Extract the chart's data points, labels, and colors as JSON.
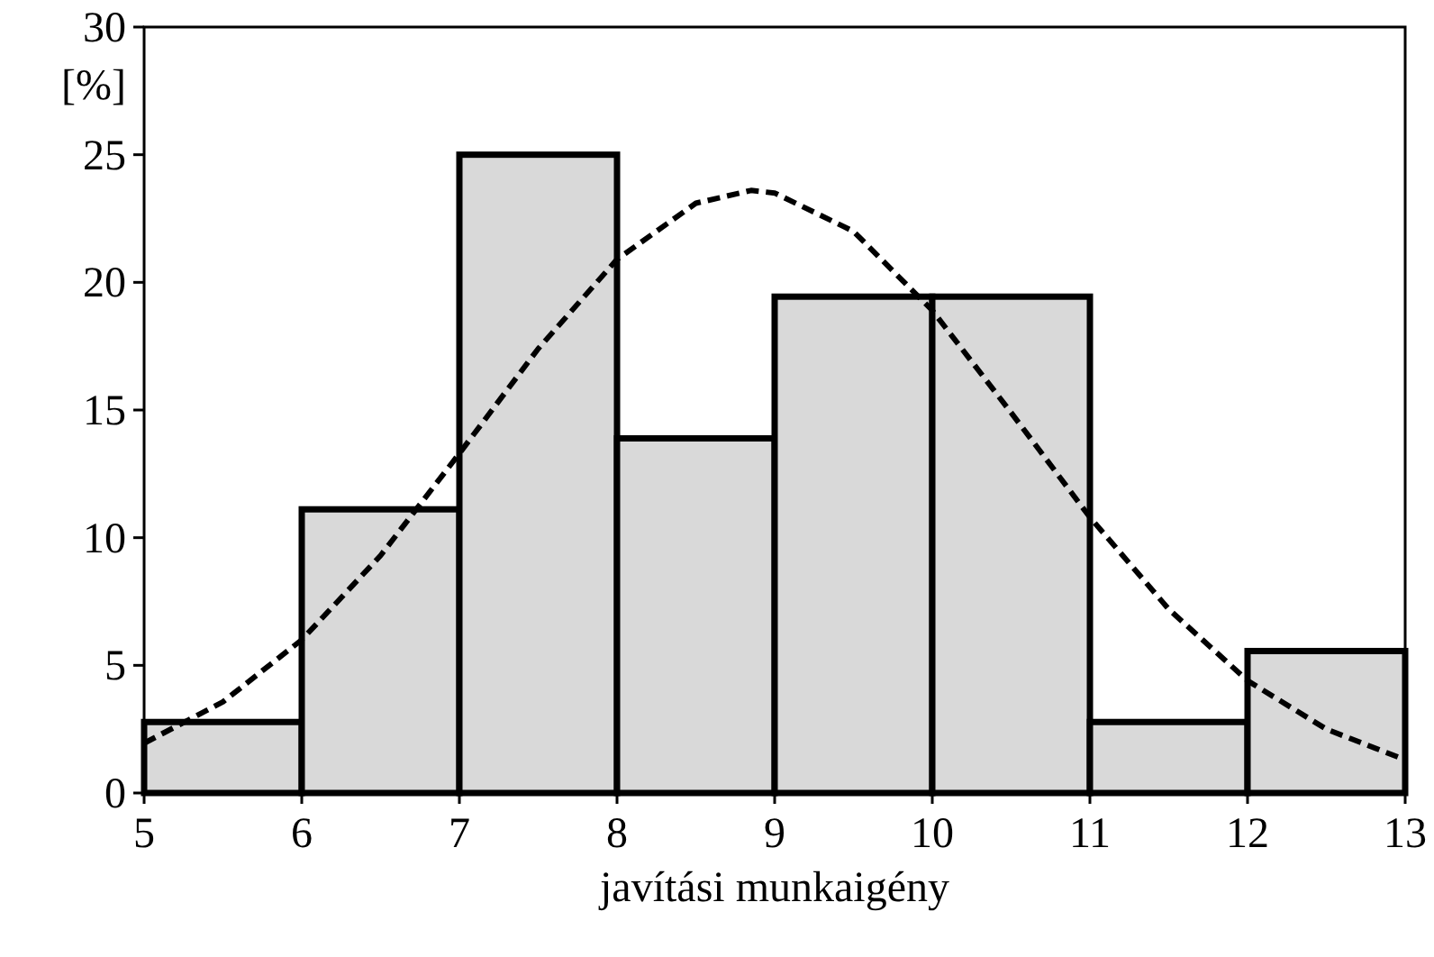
{
  "chart_data": {
    "type": "histogram",
    "xlabel": "javítási munkaigény",
    "ylabel": "[%]",
    "bins": [
      5,
      6,
      7,
      8,
      9,
      10,
      11,
      12,
      13
    ],
    "values": [
      2.78,
      11.11,
      25,
      13.89,
      19.44,
      19.44,
      2.78,
      5.56
    ],
    "color": "#d9d9d9",
    "series": [
      {
        "type": "line",
        "color": "#000000",
        "line_style": "dashed",
        "x": [
          5,
          5.5,
          6,
          6.5,
          7,
          7.5,
          8,
          8.5,
          8.85,
          9,
          9.5,
          10,
          10.5,
          11,
          11.5,
          12,
          12.5,
          13
        ],
        "values": [
          1.95,
          3.57,
          6.0,
          9.3,
          13.3,
          17.4,
          20.9,
          23.1,
          23.6,
          23.5,
          22.0,
          18.9,
          14.9,
          10.8,
          7.2,
          4.4,
          2.5,
          1.3
        ]
      }
    ],
    "xlim": [
      5,
      13
    ],
    "ylim": [
      0,
      30
    ],
    "xticks": [
      5,
      6,
      7,
      8,
      9,
      10,
      11,
      12,
      13
    ],
    "yticks": [
      0,
      5,
      10,
      15,
      20,
      25,
      30
    ],
    "grid": false
  }
}
